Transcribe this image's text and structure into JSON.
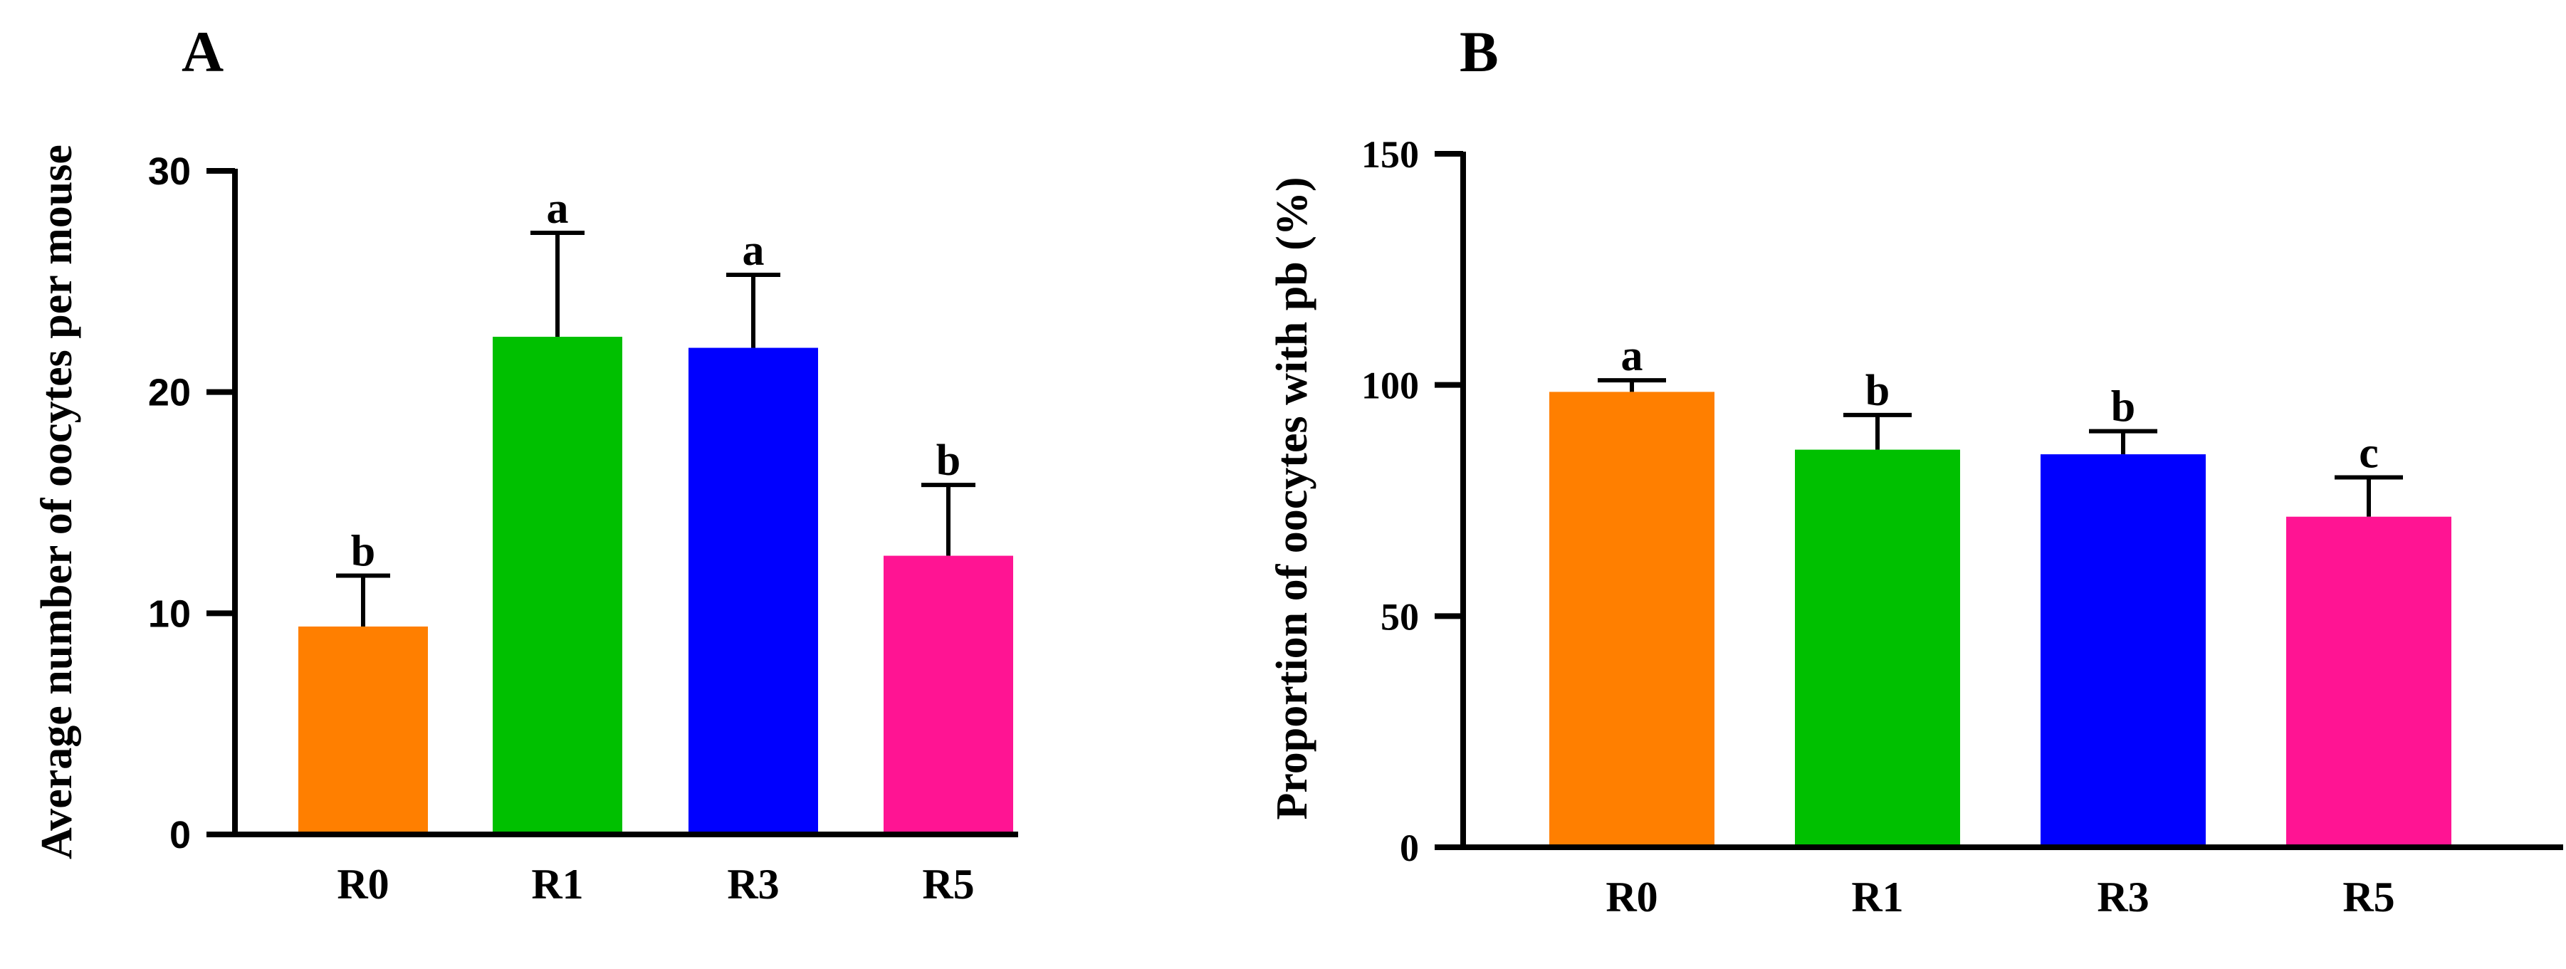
{
  "colors": {
    "R0": "#ff7f00",
    "R1": "#00c000",
    "R3": "#0000ff",
    "R5": "#ff1493",
    "axis": "#000000"
  },
  "chart_data": [
    {
      "panel": "A",
      "type": "bar",
      "title": "",
      "xlabel": "",
      "ylabel": "Average number of oocytes per mouse",
      "ylim": [
        0,
        30
      ],
      "yticks": [
        0,
        10,
        20,
        30
      ],
      "categories": [
        "R0",
        "R1",
        "R3",
        "R5"
      ],
      "values": [
        9.4,
        22.5,
        22.0,
        12.6
      ],
      "errors": [
        2.3,
        4.7,
        3.3,
        3.2
      ],
      "significance": [
        "b",
        "a",
        "a",
        "b"
      ]
    },
    {
      "panel": "B",
      "type": "bar",
      "title": "",
      "xlabel": "",
      "ylabel": "Proportion of oocytes with pb (%)",
      "ylim": [
        0,
        150
      ],
      "yticks": [
        0,
        50,
        100,
        150
      ],
      "categories": [
        "R0",
        "R1",
        "R3",
        "R5"
      ],
      "values": [
        98.5,
        86.0,
        85.0,
        71.5
      ],
      "errors": [
        2.5,
        7.5,
        5.0,
        8.5
      ],
      "significance": [
        "a",
        "b",
        "b",
        "c"
      ]
    }
  ]
}
